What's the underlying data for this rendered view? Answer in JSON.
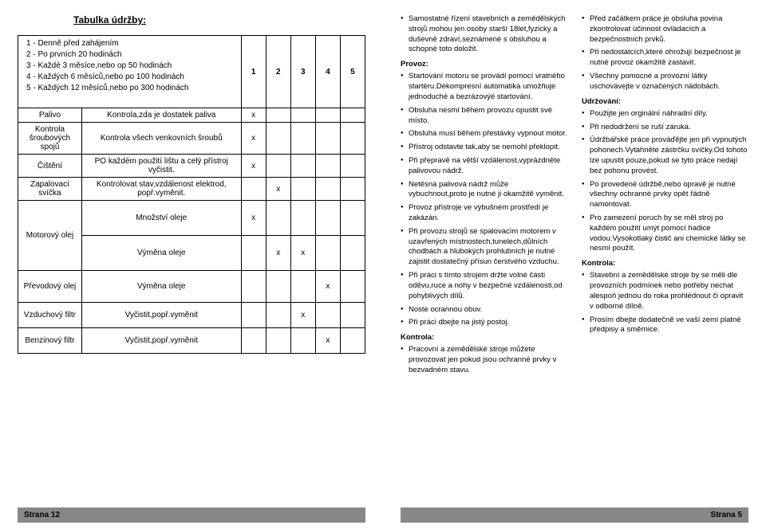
{
  "title": "Tabulka údržby:",
  "intro": [
    "1 - Denně před zahájením",
    "2 - Po prvních 20 hodinách",
    "3 - Každé 3 měsíce,nebo op 50 hodinách",
    "4 - Každých 6 měsíců,nebo po 100 hodinách",
    "5 - Každých 12 měsíců,nebo po 300 hodinách"
  ],
  "headers": [
    "1",
    "2",
    "3",
    "4",
    "5"
  ],
  "rows": [
    {
      "label": "Palivo",
      "desc": "Kontrola,zda je dostatek paliva",
      "ticks": [
        "x",
        "",
        "",
        "",
        ""
      ]
    },
    {
      "label": "Kontrola šroubových spojů",
      "desc": "Kontrola všech venkovních šroubů",
      "ticks": [
        "x",
        "",
        "",
        "",
        ""
      ]
    },
    {
      "label": "Čištění",
      "desc": "PO každém použití lištu a celý přístroj vyčistit.",
      "ticks": [
        "x",
        "",
        "",
        "",
        ""
      ]
    },
    {
      "label": "Zapalovací svíčka",
      "desc": "Kontrolovat stav,vzdálenost elektrod, popř.vyměnit.",
      "ticks": [
        "",
        "x",
        "",
        "",
        ""
      ]
    }
  ],
  "oilGroup": {
    "label": "Motorový olej",
    "sub": [
      {
        "desc": "Množství oleje",
        "ticks": [
          "x",
          "",
          "",
          "",
          ""
        ]
      },
      {
        "desc": "Výměna oleje",
        "ticks": [
          "",
          "x",
          "x",
          "",
          ""
        ]
      }
    ]
  },
  "rows2": [
    {
      "label": "Převodový olej",
      "desc": "Výměna oleje",
      "ticks": [
        "",
        "",
        "",
        "x",
        ""
      ]
    },
    {
      "label": "Vzduchový filtr",
      "desc": "Vyčistit,popř.vyměnit",
      "ticks": [
        "",
        "",
        "x",
        "",
        ""
      ]
    },
    {
      "label": "Benzinový filtr",
      "desc": "Vyčistit,popř.vyměnit",
      "ticks": [
        "",
        "",
        "",
        "x",
        ""
      ]
    }
  ],
  "leftFooter": "Strana 12",
  "rightFooter": "Strana 5",
  "right": {
    "colA_intro": [
      "Samostatné řízení stavebních a zemědělských strojů mohou jen osoby starší 18let,fyzicky a duševně zdraví,seznámené s obsluhou a schopné toto doložit."
    ],
    "provozHeading": "Provoz:",
    "provoz": [
      "Startování motoru se provádí pomocí vratného startéru.Dekompresní automatika umožňuje jednoduché a bezrázovýé startování.",
      "Obsluha nesmí během provozu opustit své místo.",
      "Obsluha musí během přestávky vypnout motor.",
      "Přístroj odstavte tak,aby se nemohl překlopit.",
      "Při přepravě na větší vzdálenost,vyprázdněte palivovou nádrž.",
      "Netěsná palivová nádrž může vybuchnout,proto je nutné ji okamžitě vyměnit.",
      "Provoz přístroje ve výbušném prostředí je zakázán.",
      "Při provozu strojů se spalovacím motorem v uzavřených místnostech,tunelech,důlních chodbách a hlubokých prohlubních je nutné  zajistit dostatečný přísun čerstvého vzduchu.",
      "Při práci s tímto strojem držte volné části oděvu,ruce a nohy v bezpečné vzdálenosti,od pohyblivých dílů.",
      "Noste ocrannou obuv.",
      "Při práci dbejte na jistý postoj."
    ],
    "kontrolaHeading": "Kontrola:",
    "kontrola": [
      "Pracovní a zemědělské stroje můžete provozovat jen pokud jsou ochranné prvky v bezvadném stavu."
    ],
    "colB_top": [
      "Před začátkem práce je obsluha povina zkontrolovat účinnost ovládacích a bezpečnostních prvků.",
      "Při nedostatcích,které ohrožují bezpečnost je nutné provoz okamžitě zastavit.",
      "Všechny pomocné a provozní látky uschovávejte v označených nádobách."
    ],
    "udrzHeading": "Udržování:",
    "udrz": [
      "Použijte jen orginální náhradní díly.",
      "Při nedodržení se ruší záruka.",
      "Údržbářské práce prováďějte jen při vypnutých pohonech.Vytáhněte zástrčku svíčky.Od tohoto lze upustit pouze,pokud se tyto práce nedají bez pohonu provést.",
      "Po provedené údržbě,nebo opravě je nutné všechny ochranné prvky opět řádně namontovat.",
      "Pro zamezení poruch by se měl stroj po každém použití umýt pomocí hadice vodou.Vysokotlaký čistič ani chemické látky se nesmí použít."
    ],
    "kontrolaHeading2": "Kontrola:",
    "kontrola2": [
      "Stavební a zemědělské stroje by se měli dle provozních podmínek nebo potřeby nechat alespoň jednou do roka prohlédnout či opravit v  odborné dílně.",
      "Prosím dbejte dodatečně ve vaší zemi platné předpisy a směrnice."
    ]
  }
}
